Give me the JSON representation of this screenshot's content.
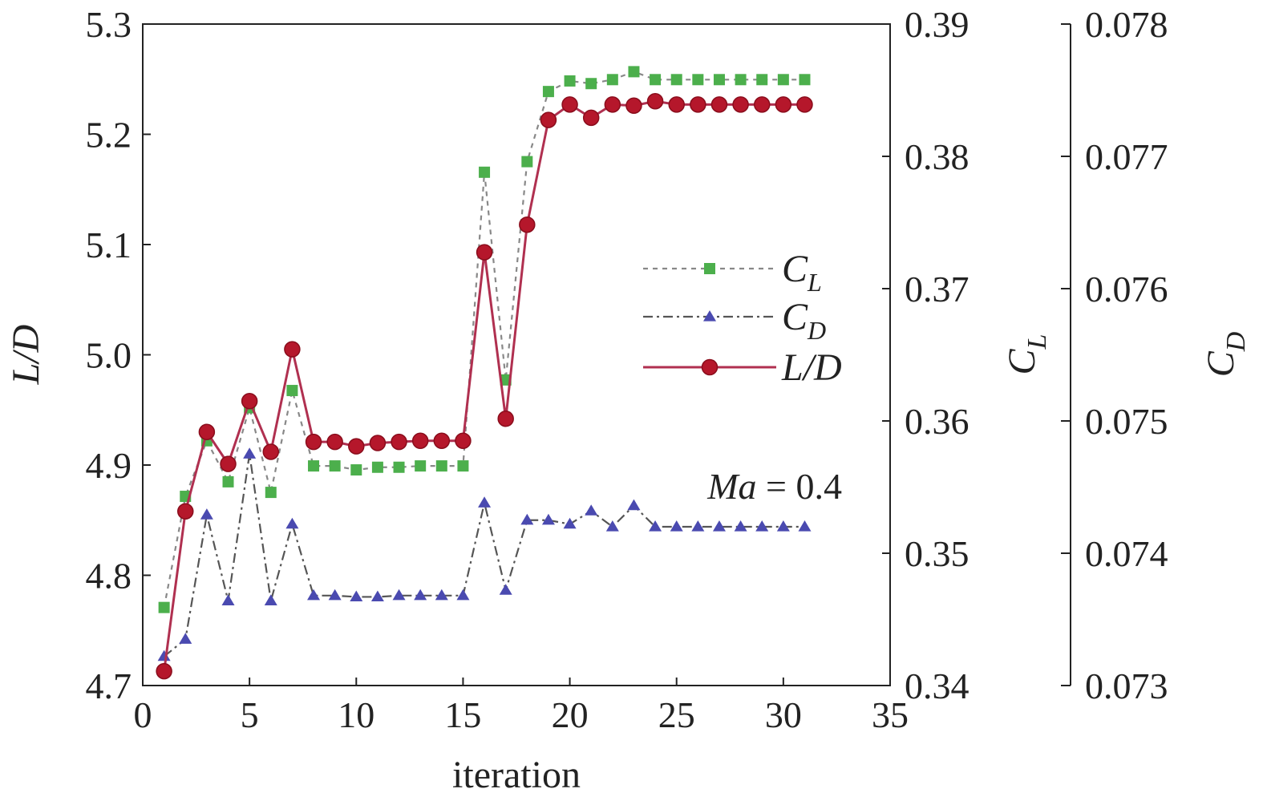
{
  "chart_data": {
    "type": "line",
    "xlabel": "iteration",
    "xlim": [
      0,
      35
    ],
    "x_ticks": [
      "0",
      "5",
      "10",
      "15",
      "20",
      "25",
      "30",
      "35"
    ],
    "axes": {
      "left": {
        "label_main": "L",
        "label_sep": "/",
        "label_sub": "D",
        "ylim": [
          4.7,
          5.3
        ],
        "ticks": [
          "4.7",
          "4.8",
          "4.9",
          "5.0",
          "5.1",
          "5.2",
          "5.3"
        ]
      },
      "right1": {
        "label_main": "C",
        "label_sub": "L",
        "ylim": [
          0.34,
          0.39
        ],
        "ticks": [
          "0.34",
          "0.35",
          "0.36",
          "0.37",
          "0.38",
          "0.39"
        ]
      },
      "right2": {
        "label_main": "C",
        "label_sub": "D",
        "ylim": [
          0.073,
          0.078
        ],
        "ticks": [
          "0.073",
          "0.074",
          "0.075",
          "0.076",
          "0.077",
          "0.078"
        ]
      }
    },
    "x": [
      1,
      2,
      3,
      4,
      5,
      6,
      7,
      8,
      9,
      10,
      11,
      12,
      13,
      14,
      15,
      16,
      17,
      18,
      19,
      20,
      21,
      22,
      23,
      24,
      25,
      26,
      27,
      28,
      29,
      30,
      31
    ],
    "series": [
      {
        "key": "CL",
        "name_main": "C",
        "name_sub": "L",
        "axis": "right1",
        "color": "#4caf4c",
        "line_color": "#888888",
        "dash": "6,6",
        "marker": "square",
        "values": [
          0.3459,
          0.3543,
          0.3585,
          0.3554,
          0.361,
          0.3546,
          0.3623,
          0.3566,
          0.3566,
          0.3563,
          0.3565,
          0.3565,
          0.3566,
          0.3566,
          0.3566,
          0.3788,
          0.3631,
          0.3796,
          0.3849,
          0.3857,
          0.3855,
          0.3858,
          0.3864,
          0.3858,
          0.3858,
          0.3858,
          0.3858,
          0.3858,
          0.3858,
          0.3858,
          0.3858
        ]
      },
      {
        "key": "CD",
        "name_main": "C",
        "name_sub": "D",
        "axis": "right2",
        "color": "#4a4ab0",
        "line_color": "#555555",
        "dash": "12,5,3,5",
        "marker": "triangle",
        "values": [
          0.07322,
          0.07335,
          0.07429,
          0.07364,
          0.07475,
          0.07364,
          0.07422,
          0.07368,
          0.07368,
          0.07367,
          0.07367,
          0.07368,
          0.07368,
          0.07368,
          0.07368,
          0.07438,
          0.07372,
          0.07425,
          0.07425,
          0.07422,
          0.07432,
          0.0742,
          0.07436,
          0.0742,
          0.0742,
          0.0742,
          0.0742,
          0.0742,
          0.0742,
          0.0742,
          0.0742
        ]
      },
      {
        "key": "LD",
        "name_main": "L",
        "name_sep": "/",
        "name_sub": "D",
        "axis": "left",
        "color": "#b5172b",
        "line_color": "#b03050",
        "dash": "",
        "marker": "circle",
        "values": [
          4.713,
          4.858,
          4.93,
          4.901,
          4.958,
          4.912,
          5.005,
          4.921,
          4.921,
          4.917,
          4.92,
          4.921,
          4.922,
          4.922,
          4.922,
          5.093,
          4.942,
          5.118,
          5.213,
          5.227,
          5.215,
          5.227,
          5.226,
          5.23,
          5.227,
          5.227,
          5.227,
          5.227,
          5.227,
          5.227,
          5.227
        ]
      }
    ],
    "annotation": {
      "main": "Ma",
      "rest": " = 0.4"
    },
    "legend_position": "center-right"
  }
}
